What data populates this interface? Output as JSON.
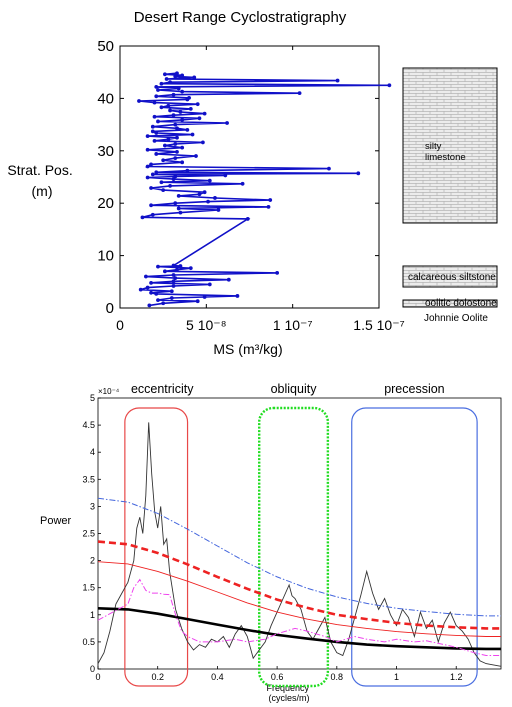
{
  "chart_data": [
    {
      "type": "line",
      "title": "Desert Range Cyclostratigraphy",
      "xlabel": "MS (m³/kg)",
      "ylabel": "Strat. Pos. (m)",
      "xlim": [
        0,
        1.5e-07
      ],
      "ylim": [
        0,
        50
      ],
      "x_tick_labels": [
        "0",
        "5 10⁻⁸",
        "1 10⁻⁷",
        "1.5 10⁻⁷"
      ],
      "y_tick_labels": [
        "0",
        "10",
        "20",
        "30",
        "40",
        "50"
      ],
      "series_color": "#1010c8",
      "series": [
        {
          "x": [
            1.7e-08,
            2.5e-08,
            4.5e-08,
            2.2e-08,
            3e-08,
            4.9e-08,
            6.8e-08,
            2.1e-08,
            1.8e-08,
            3e-08,
            1.2e-08,
            1.6e-08,
            3.1e-08,
            5.2e-08,
            1.8e-08,
            3.1e-08,
            6.3e-08,
            3.2e-08,
            1.5e-08,
            3.1e-08,
            9.1e-08,
            2.6e-08,
            3.3e-08,
            4.1e-08,
            2.2e-08,
            3.5e-08,
            3.1e-08,
            7.4e-08,
            1.3e-08,
            1.9e-08,
            3.5e-08,
            5.7e-08,
            3.4e-08,
            8.6e-08,
            1.8e-08,
            3.2e-08,
            5.1e-08,
            8.7e-08,
            5.5e-08,
            3.4e-08,
            4.6e-08,
            4.9e-08,
            2.5e-08,
            1.8e-08,
            2.9e-08,
            7.1e-08,
            2.4e-08,
            5.2e-08,
            3.1e-08,
            1.6e-08,
            3.2e-08,
            6.1e-08,
            1.9e-08,
            1.38e-07,
            2.1e-08,
            3.9e-08,
            1.21e-07,
            1.6e-08,
            1.8e-08,
            3.6e-08,
            2.5e-08,
            3.2e-08,
            4.4e-08,
            2.1e-08,
            3.3e-08,
            1.6e-08,
            3.6e-08,
            2.6e-08,
            3.2e-08,
            4.8e-08,
            2e-08,
            2.8e-08,
            3.3e-08,
            1.6e-08,
            4.2e-08,
            2.1e-08,
            1.9e-08,
            3.9e-08,
            3.3e-08,
            1.9e-08,
            3.2e-08,
            6.2e-08,
            2.2e-08,
            3.6e-08,
            4.6e-08,
            2e-08,
            3.1e-08,
            4.9e-08,
            3.5e-08,
            2.9e-08,
            4.1e-08,
            2.4e-08,
            2.8e-08,
            4.5e-08,
            2e-08,
            1.1e-08,
            3.9e-08,
            4e-08,
            2.1e-08,
            3.1e-08,
            1.04e-07,
            3.6e-08,
            2.2e-08,
            3.4e-08,
            2.1e-08,
            1.56e-07,
            2.4e-08,
            2.9e-08,
            1.26e-07,
            2.7e-08,
            4.3e-08,
            3.2e-08,
            3.6e-08,
            2.6e-08,
            3.3e-08
          ],
          "y": [
            0.5,
            0.9,
            1.3,
            1.5,
            1.9,
            2.1,
            2.3,
            2.7,
            2.9,
            3.2,
            3.5,
            3.9,
            4.2,
            4.5,
            4.8,
            5.1,
            5.4,
            5.7,
            6.0,
            6.3,
            6.7,
            7.0,
            7.3,
            7.6,
            7.9,
            8.0,
            8.1,
            17.0,
            17.3,
            17.8,
            18.2,
            18.7,
            19.0,
            19.3,
            19.6,
            20.0,
            20.3,
            20.6,
            21.0,
            21.4,
            21.7,
            22.1,
            22.5,
            22.9,
            23.3,
            23.7,
            24.0,
            24.3,
            24.6,
            24.9,
            25.1,
            25.3,
            25.5,
            25.7,
            25.9,
            26.2,
            26.6,
            27.0,
            27.4,
            27.8,
            28.2,
            28.6,
            29.0,
            29.4,
            29.8,
            30.2,
            30.6,
            31.0,
            31.3,
            31.6,
            31.9,
            32.2,
            32.5,
            32.8,
            33.1,
            33.4,
            33.7,
            34.0,
            34.3,
            34.6,
            35.0,
            35.3,
            35.6,
            35.9,
            36.2,
            36.5,
            36.8,
            37.1,
            37.4,
            37.7,
            38.0,
            38.3,
            38.6,
            38.9,
            39.2,
            39.5,
            39.8,
            40.1,
            40.4,
            40.7,
            41.0,
            41.3,
            41.6,
            41.9,
            42.2,
            42.5,
            42.8,
            43.1,
            43.4,
            43.7,
            44.0,
            44.2,
            44.4,
            44.6,
            44.8
          ]
        }
      ],
      "lithology": [
        {
          "label": "silty\nlimestone",
          "from": 23.5,
          "to": 42.5
        },
        {
          "label": "calcareous siltstone",
          "from": 1.6,
          "to": 4.0
        },
        {
          "label": "oolitic dolostone",
          "from": 0.0,
          "to": 0.8
        },
        {
          "label": "Johnnie Oolite",
          "from": 0.0,
          "to": 0.0
        }
      ]
    },
    {
      "type": "line",
      "title": "",
      "xlabel": "Frequency\n(cycles/m)",
      "ylabel": "Power",
      "exponent_label": "×10⁻⁴",
      "xlim": [
        0,
        1.35
      ],
      "ylim": [
        0,
        5
      ],
      "x_tick_labels": [
        "0",
        "0.2",
        "0.4",
        "0.6",
        "0.8",
        "1",
        "1.2"
      ],
      "y_tick_labels": [
        "0",
        "0.5",
        "1",
        "1.5",
        "2",
        "2.5",
        "3",
        "3.5",
        "4",
        "4.5",
        "5"
      ],
      "annotations": [
        {
          "label": "eccentricity",
          "x_range": [
            0.09,
            0.3
          ],
          "color": "#e84848"
        },
        {
          "label": "obliquity",
          "x_range": [
            0.54,
            0.77
          ],
          "color": "#22dd22"
        },
        {
          "label": "precession",
          "x_range": [
            0.85,
            1.27
          ],
          "color": "#4a6ee0"
        }
      ],
      "series": [
        {
          "name": "",
          "color": "#333333",
          "style": "solid-thin",
          "x": [
            0,
            0.02,
            0.04,
            0.06,
            0.08,
            0.1,
            0.12,
            0.13,
            0.14,
            0.15,
            0.16,
            0.17,
            0.18,
            0.19,
            0.2,
            0.21,
            0.22,
            0.23,
            0.24,
            0.26,
            0.28,
            0.3,
            0.32,
            0.34,
            0.36,
            0.38,
            0.4,
            0.42,
            0.44,
            0.46,
            0.48,
            0.5,
            0.52,
            0.54,
            0.56,
            0.58,
            0.6,
            0.62,
            0.64,
            0.65,
            0.66,
            0.68,
            0.7,
            0.72,
            0.74,
            0.76,
            0.78,
            0.8,
            0.82,
            0.84,
            0.86,
            0.88,
            0.9,
            0.92,
            0.94,
            0.96,
            0.98,
            1.0,
            1.02,
            1.04,
            1.06,
            1.08,
            1.1,
            1.12,
            1.14,
            1.16,
            1.18,
            1.2,
            1.22,
            1.24,
            1.26,
            1.28,
            1.3,
            1.32,
            1.35
          ],
          "y": [
            0.1,
            0.3,
            0.7,
            1.2,
            1.4,
            1.6,
            2.0,
            2.6,
            2.8,
            2.5,
            3.2,
            4.55,
            3.6,
            2.9,
            2.6,
            3.0,
            2.3,
            2.4,
            1.8,
            1.1,
            0.75,
            0.5,
            0.35,
            0.45,
            0.4,
            0.55,
            0.5,
            0.6,
            0.4,
            0.65,
            0.8,
            0.6,
            0.2,
            0.35,
            0.5,
            0.8,
            1.05,
            1.3,
            1.55,
            1.35,
            1.3,
            1.1,
            0.7,
            0.55,
            0.75,
            0.95,
            0.5,
            0.3,
            0.25,
            0.55,
            0.95,
            1.35,
            1.8,
            1.4,
            1.1,
            1.3,
            1.0,
            0.8,
            1.1,
            0.95,
            0.6,
            1.05,
            0.75,
            0.9,
            0.5,
            0.85,
            1.05,
            0.8,
            0.7,
            0.55,
            0.3,
            0.15,
            0.1,
            0.08,
            0.05
          ]
        },
        {
          "name": "",
          "color": "#000000",
          "style": "solid-thick",
          "x": [
            0,
            0.1,
            0.2,
            0.3,
            0.4,
            0.5,
            0.6,
            0.7,
            0.8,
            0.9,
            1.0,
            1.1,
            1.2,
            1.3,
            1.35
          ],
          "y": [
            1.12,
            1.1,
            1.02,
            0.92,
            0.82,
            0.72,
            0.63,
            0.56,
            0.5,
            0.45,
            0.42,
            0.4,
            0.38,
            0.37,
            0.37
          ]
        },
        {
          "name": "",
          "color": "#ee2222",
          "style": "solid-thin",
          "x": [
            0,
            0.1,
            0.2,
            0.3,
            0.4,
            0.5,
            0.6,
            0.7,
            0.8,
            0.9,
            1.0,
            1.1,
            1.2,
            1.3,
            1.35
          ],
          "y": [
            1.98,
            1.94,
            1.8,
            1.62,
            1.42,
            1.22,
            1.05,
            0.92,
            0.82,
            0.75,
            0.69,
            0.65,
            0.62,
            0.6,
            0.6
          ]
        },
        {
          "name": "",
          "color": "#ee2222",
          "style": "dashed-thick",
          "x": [
            0,
            0.1,
            0.2,
            0.3,
            0.4,
            0.5,
            0.6,
            0.7,
            0.8,
            0.9,
            1.0,
            1.1,
            1.2,
            1.3,
            1.35
          ],
          "y": [
            2.35,
            2.3,
            2.14,
            1.93,
            1.7,
            1.48,
            1.28,
            1.13,
            1.0,
            0.92,
            0.85,
            0.8,
            0.77,
            0.75,
            0.75
          ]
        },
        {
          "name": "",
          "color": "#4466dd",
          "style": "dashdot-thin",
          "x": [
            0,
            0.1,
            0.2,
            0.3,
            0.4,
            0.5,
            0.6,
            0.7,
            0.8,
            0.9,
            1.0,
            1.1,
            1.2,
            1.3,
            1.35
          ],
          "y": [
            3.15,
            3.08,
            2.87,
            2.58,
            2.27,
            1.96,
            1.7,
            1.49,
            1.33,
            1.21,
            1.12,
            1.06,
            1.01,
            0.98,
            0.98
          ]
        },
        {
          "name": "",
          "color": "#ee44ee",
          "style": "dashdot-thin",
          "x": [
            0,
            0.05,
            0.1,
            0.12,
            0.14,
            0.16,
            0.18,
            0.2,
            0.22,
            0.24,
            0.26,
            0.28,
            0.3,
            0.34,
            0.4,
            0.46,
            0.5,
            0.56,
            0.6,
            0.66,
            0.7,
            0.76,
            0.8,
            0.86,
            0.9,
            0.96,
            1.0,
            1.06,
            1.1,
            1.16,
            1.2,
            1.26,
            1.3,
            1.35
          ],
          "y": [
            0.9,
            1.05,
            1.2,
            1.5,
            1.65,
            1.45,
            1.4,
            1.4,
            1.38,
            1.37,
            1.0,
            0.7,
            0.6,
            0.5,
            0.5,
            0.55,
            0.5,
            0.55,
            0.65,
            0.75,
            0.7,
            0.6,
            0.5,
            0.6,
            0.55,
            0.5,
            0.55,
            0.5,
            0.52,
            0.45,
            0.4,
            0.3,
            0.25,
            0.25
          ]
        }
      ]
    }
  ]
}
